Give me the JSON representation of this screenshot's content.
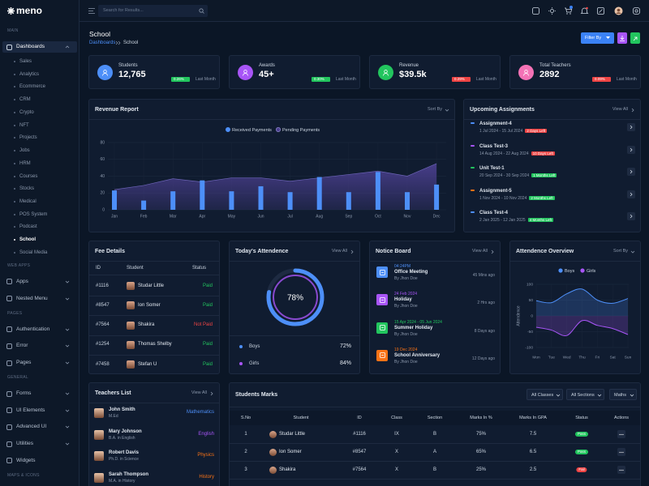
{
  "brand": "meno",
  "search_placeholder": "Search for Results...",
  "sidebar": {
    "sections": [
      {
        "title": "MAIN",
        "items": [
          {
            "label": "Dashboards",
            "expanded": true,
            "children": [
              {
                "label": "Sales"
              },
              {
                "label": "Analytics"
              },
              {
                "label": "Ecommerce"
              },
              {
                "label": "CRM"
              },
              {
                "label": "Crypto"
              },
              {
                "label": "NFT"
              },
              {
                "label": "Projects"
              },
              {
                "label": "Jobs"
              },
              {
                "label": "HRM"
              },
              {
                "label": "Courses"
              },
              {
                "label": "Stocks"
              },
              {
                "label": "Medical"
              },
              {
                "label": "POS System"
              },
              {
                "label": "Podcast"
              },
              {
                "label": "School",
                "active": true
              },
              {
                "label": "Social Media"
              }
            ]
          }
        ]
      },
      {
        "title": "WEB APPS",
        "items": [
          {
            "label": "Apps",
            "expandable": true
          },
          {
            "label": "Nested Menu",
            "expandable": true
          }
        ]
      },
      {
        "title": "PAGES",
        "items": [
          {
            "label": "Authentication",
            "expandable": true
          },
          {
            "label": "Error",
            "expandable": true
          },
          {
            "label": "Pages",
            "expandable": true
          }
        ]
      },
      {
        "title": "GENERAL",
        "items": [
          {
            "label": "Forms",
            "expandable": true
          },
          {
            "label": "UI Elements",
            "expandable": true
          },
          {
            "label": "Advanced UI",
            "expandable": true
          },
          {
            "label": "Utilities",
            "expandable": true
          },
          {
            "label": "Widgets"
          }
        ]
      },
      {
        "title": "MAPS & ICONS"
      }
    ]
  },
  "page": {
    "title": "School",
    "breadcrumb": [
      "Dashboards",
      "School"
    ],
    "filter_button": "Filter By"
  },
  "stats": [
    {
      "label": "Students",
      "value": "12,765",
      "change": "0.26%",
      "trend": "up",
      "period": "Last Month",
      "color": "#4d8ff8"
    },
    {
      "label": "Awards",
      "value": "45+",
      "change": "0.30%",
      "trend": "up",
      "period": "Last Month",
      "color": "#a855f7"
    },
    {
      "label": "Revenue",
      "value": "$39.5k",
      "change": "0.29%",
      "trend": "down",
      "period": "Last Month",
      "color": "#22c55e"
    },
    {
      "label": "Total Teachers",
      "value": "2892",
      "change": "0.09%",
      "trend": "down",
      "period": "Last Month",
      "color": "#f472b6"
    }
  ],
  "revenue_chart": {
    "type": "bar",
    "title": "Revenue Report",
    "sort_label": "Sort By",
    "categories": [
      "Jan",
      "Feb",
      "Mar",
      "Apr",
      "May",
      "Jun",
      "Jul",
      "Aug",
      "Sep",
      "Oct",
      "Nov",
      "Dec"
    ],
    "series": [
      {
        "name": "Received Payments",
        "kind": "bar",
        "color": "#4d8ff8",
        "values": [
          23,
          11,
          22,
          35,
          22,
          28,
          21,
          39,
          21,
          45,
          21,
          30
        ]
      },
      {
        "name": "Pending Payments",
        "kind": "area",
        "color": "#4a3f8e",
        "values": [
          24,
          29,
          37,
          33,
          38,
          38,
          34,
          38,
          42,
          46,
          40,
          55
        ]
      }
    ],
    "ylim": [
      0,
      80
    ],
    "yticks": [
      0,
      20,
      40,
      60,
      80
    ],
    "grid": true
  },
  "assignments": {
    "title": "Upcoming Assignments",
    "view_all": "View All",
    "items": [
      {
        "name": "Assignment-4",
        "dates": "1 Jul 2024 - 15 Jul 2024",
        "due": "2 Days Left",
        "urgent": true,
        "color": "#4d8ff8"
      },
      {
        "name": "Class Test-3",
        "dates": "14 Aug 2024 - 22 Aug 2024",
        "due": "10 Days Left",
        "urgent": true,
        "color": "#a855f7"
      },
      {
        "name": "Unit Test-1",
        "dates": "20 Sep 2024 - 30 Sep 2024",
        "due": "1 Months Left",
        "urgent": false,
        "color": "#22c55e"
      },
      {
        "name": "Assignment-5",
        "dates": "1 Nov 2024 - 10 Nov 2024",
        "due": "2 Months Left",
        "urgent": false,
        "color": "#f97316"
      },
      {
        "name": "Class Test-4",
        "dates": "2 Jan 2025 - 12 Jan 2025",
        "due": "4 Months Left",
        "urgent": false,
        "color": "#4d8ff8"
      }
    ]
  },
  "fee_details": {
    "title": "Fee Details",
    "columns": [
      "ID",
      "Student",
      "Status"
    ],
    "rows": [
      {
        "id": "#1116",
        "student": "Studar Little",
        "status": "Paid",
        "paid": true
      },
      {
        "id": "#8547",
        "student": "Ion Somer",
        "status": "Paid",
        "paid": true
      },
      {
        "id": "#7564",
        "student": "Shakira",
        "status": "Not Paid",
        "paid": false
      },
      {
        "id": "#1254",
        "student": "Thomas Shelby",
        "status": "Paid",
        "paid": true
      },
      {
        "id": "#7458",
        "student": "Stefan U",
        "status": "Paid",
        "paid": true
      }
    ]
  },
  "todays_attendance": {
    "title": "Today's Attendence",
    "view_all": "View All",
    "total": {
      "value": 78,
      "label": "78%"
    },
    "groups": [
      {
        "name": "Boys",
        "percent": "72%",
        "color": "#4d8ff8"
      },
      {
        "name": "Girls",
        "percent": "84%",
        "color": "#a855f7"
      }
    ]
  },
  "notice_board": {
    "title": "Notice Board",
    "view_all": "View All",
    "items": [
      {
        "date": "04:24PM",
        "title": "Office Meeting",
        "author": "By Jhon Doe",
        "ago": "45 Mins ago",
        "color": "#4d8ff8"
      },
      {
        "date": "24 Feb 2024",
        "title": "Holiday",
        "author": "By Jhon Doe",
        "ago": "2 Hrs ago",
        "color": "#a855f7"
      },
      {
        "date": "15 Apr 2024 - 05 Jun 2024",
        "title": "Summer Holiday",
        "author": "By Jhon Doe",
        "ago": "8 Days ago",
        "color": "#22c55e"
      },
      {
        "date": "19 Dec 2024",
        "title": "School Anniversary",
        "author": "By Jhon Doe",
        "ago": "12 Days ago",
        "color": "#f97316"
      }
    ]
  },
  "attendance_overview": {
    "type": "line",
    "title": "Attendence Overview",
    "sort_label": "Sort By",
    "y_label": "Attendence",
    "categories": [
      "Mon",
      "Tue",
      "Wed",
      "Thu",
      "Fri",
      "Sat",
      "Sun"
    ],
    "series": [
      {
        "name": "Boys",
        "color": "#4d8ff8",
        "values": [
          48,
          42,
          70,
          85,
          50,
          40,
          55
        ]
      },
      {
        "name": "Girls",
        "color": "#a855f7",
        "values": [
          -36,
          -45,
          -62,
          -15,
          -30,
          -40,
          -59
        ]
      }
    ],
    "ylim": [
      -100,
      100
    ],
    "yticks": [
      100,
      50,
      0,
      -50,
      -100
    ],
    "grid": true
  },
  "teachers": {
    "title": "Teachers List",
    "view_all": "View All",
    "items": [
      {
        "name": "John Smith",
        "degree": "M.Ed",
        "subject": "Mathematics",
        "color": "#4d8ff8"
      },
      {
        "name": "Mary Johnson",
        "degree": "B.A. in English",
        "subject": "English",
        "color": "#a855f7"
      },
      {
        "name": "Robert Davis",
        "degree": "Ph.D. in Science",
        "subject": "Physics",
        "color": "#f97316"
      },
      {
        "name": "Sarah Thompson",
        "degree": "M.A. in History",
        "subject": "History",
        "color": "#f97316"
      }
    ]
  },
  "student_marks": {
    "title": "Students Marks",
    "filters": [
      "All Classes",
      "All Sections",
      "Maths"
    ],
    "columns": [
      "S.No",
      "Student",
      "ID",
      "Class",
      "Section",
      "Marks In %",
      "Marks In GPA",
      "Status",
      "Actions"
    ],
    "rows": [
      {
        "sno": "1",
        "student": "Studar Little",
        "id": "#1116",
        "class": "IX",
        "section": "B",
        "percent": "75%",
        "gpa": "7.5",
        "status": "Pass",
        "passed": true
      },
      {
        "sno": "2",
        "student": "Ion Somer",
        "id": "#8547",
        "class": "X",
        "section": "A",
        "percent": "65%",
        "gpa": "6.5",
        "status": "Pass",
        "passed": true
      },
      {
        "sno": "3",
        "student": "Shakira",
        "id": "#7564",
        "class": "X",
        "section": "B",
        "percent": "25%",
        "gpa": "2.5",
        "status": "Fail",
        "passed": false
      }
    ]
  }
}
